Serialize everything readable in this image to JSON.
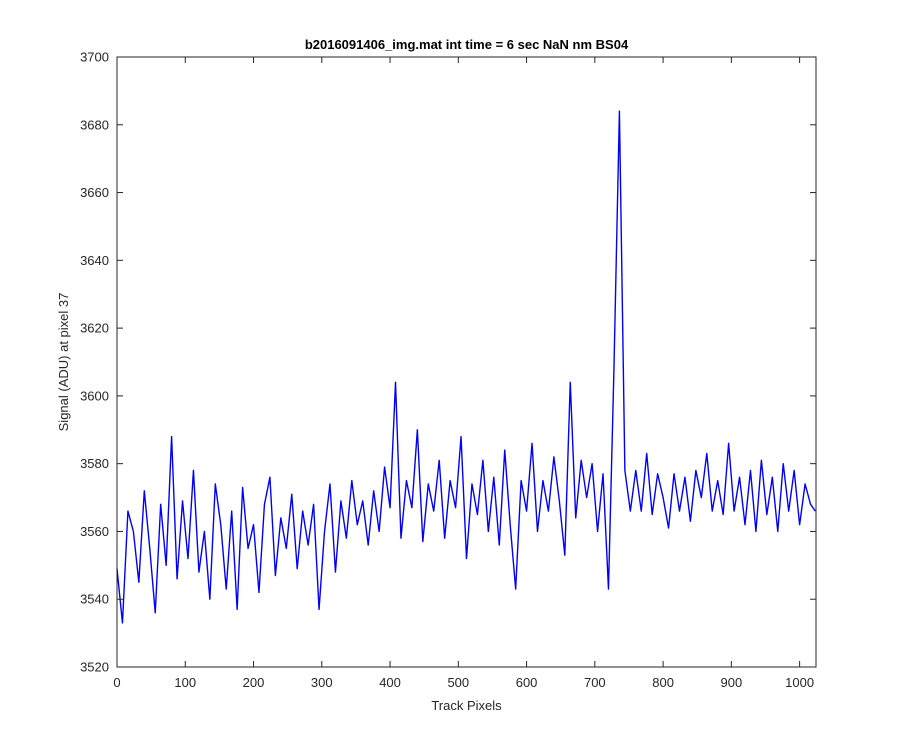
{
  "chart_data": {
    "type": "line",
    "title": "b2016091406_img.mat int time = 6 sec  NaN nm BS04",
    "xlabel": "Track Pixels",
    "ylabel": "Signal (ADU) at pixel 37",
    "xlim": [
      0,
      1024
    ],
    "ylim": [
      3520,
      3700
    ],
    "xticks": [
      0,
      100,
      200,
      300,
      400,
      500,
      600,
      700,
      800,
      900,
      1000
    ],
    "yticks": [
      3520,
      3540,
      3560,
      3580,
      3600,
      3620,
      3640,
      3660,
      3680,
      3700
    ],
    "grid": false,
    "legend": "none",
    "series_color": "#0000ff",
    "series": [
      {
        "x": [
          0,
          8,
          16,
          24,
          32,
          40,
          48,
          56,
          64,
          72,
          80,
          88,
          96,
          104,
          112,
          120,
          128,
          136,
          144,
          152,
          160,
          168,
          176,
          184,
          192,
          200,
          208,
          216,
          224,
          232,
          240,
          248,
          256,
          264,
          272,
          280,
          288,
          296,
          304,
          312,
          320,
          328,
          336,
          344,
          352,
          360,
          368,
          376,
          384,
          392,
          400,
          408,
          416,
          424,
          432,
          440,
          448,
          456,
          464,
          472,
          480,
          488,
          496,
          504,
          512,
          520,
          528,
          536,
          544,
          552,
          560,
          568,
          576,
          584,
          592,
          600,
          608,
          616,
          624,
          632,
          640,
          648,
          656,
          664,
          672,
          680,
          688,
          696,
          704,
          712,
          720,
          728,
          736,
          744,
          752,
          760,
          768,
          776,
          784,
          792,
          800,
          808,
          816,
          824,
          832,
          840,
          848,
          856,
          864,
          872,
          880,
          888,
          896,
          904,
          912,
          920,
          928,
          936,
          944,
          952,
          960,
          968,
          976,
          984,
          992,
          1000,
          1008,
          1016,
          1023
        ],
        "values": [
          3549,
          3533,
          3566,
          3560,
          3545,
          3572,
          3555,
          3536,
          3568,
          3550,
          3588,
          3546,
          3569,
          3552,
          3578,
          3548,
          3560,
          3540,
          3574,
          3562,
          3543,
          3566,
          3537,
          3573,
          3555,
          3562,
          3542,
          3568,
          3576,
          3547,
          3564,
          3555,
          3571,
          3549,
          3566,
          3556,
          3568,
          3537,
          3560,
          3574,
          3548,
          3569,
          3558,
          3575,
          3562,
          3569,
          3556,
          3572,
          3560,
          3579,
          3567,
          3604,
          3558,
          3575,
          3567,
          3590,
          3557,
          3574,
          3566,
          3581,
          3558,
          3575,
          3567,
          3588,
          3552,
          3574,
          3565,
          3581,
          3560,
          3576,
          3556,
          3584,
          3562,
          3543,
          3575,
          3566,
          3586,
          3560,
          3575,
          3566,
          3582,
          3569,
          3553,
          3604,
          3564,
          3581,
          3570,
          3580,
          3560,
          3577,
          3543,
          3608,
          3684,
          3578,
          3566,
          3578,
          3566,
          3583,
          3565,
          3577,
          3570,
          3561,
          3577,
          3566,
          3576,
          3563,
          3578,
          3570,
          3583,
          3566,
          3575,
          3565,
          3586,
          3566,
          3576,
          3562,
          3578,
          3560,
          3581,
          3565,
          3576,
          3560,
          3580,
          3566,
          3578,
          3562,
          3574,
          3568,
          3566
        ]
      }
    ]
  }
}
